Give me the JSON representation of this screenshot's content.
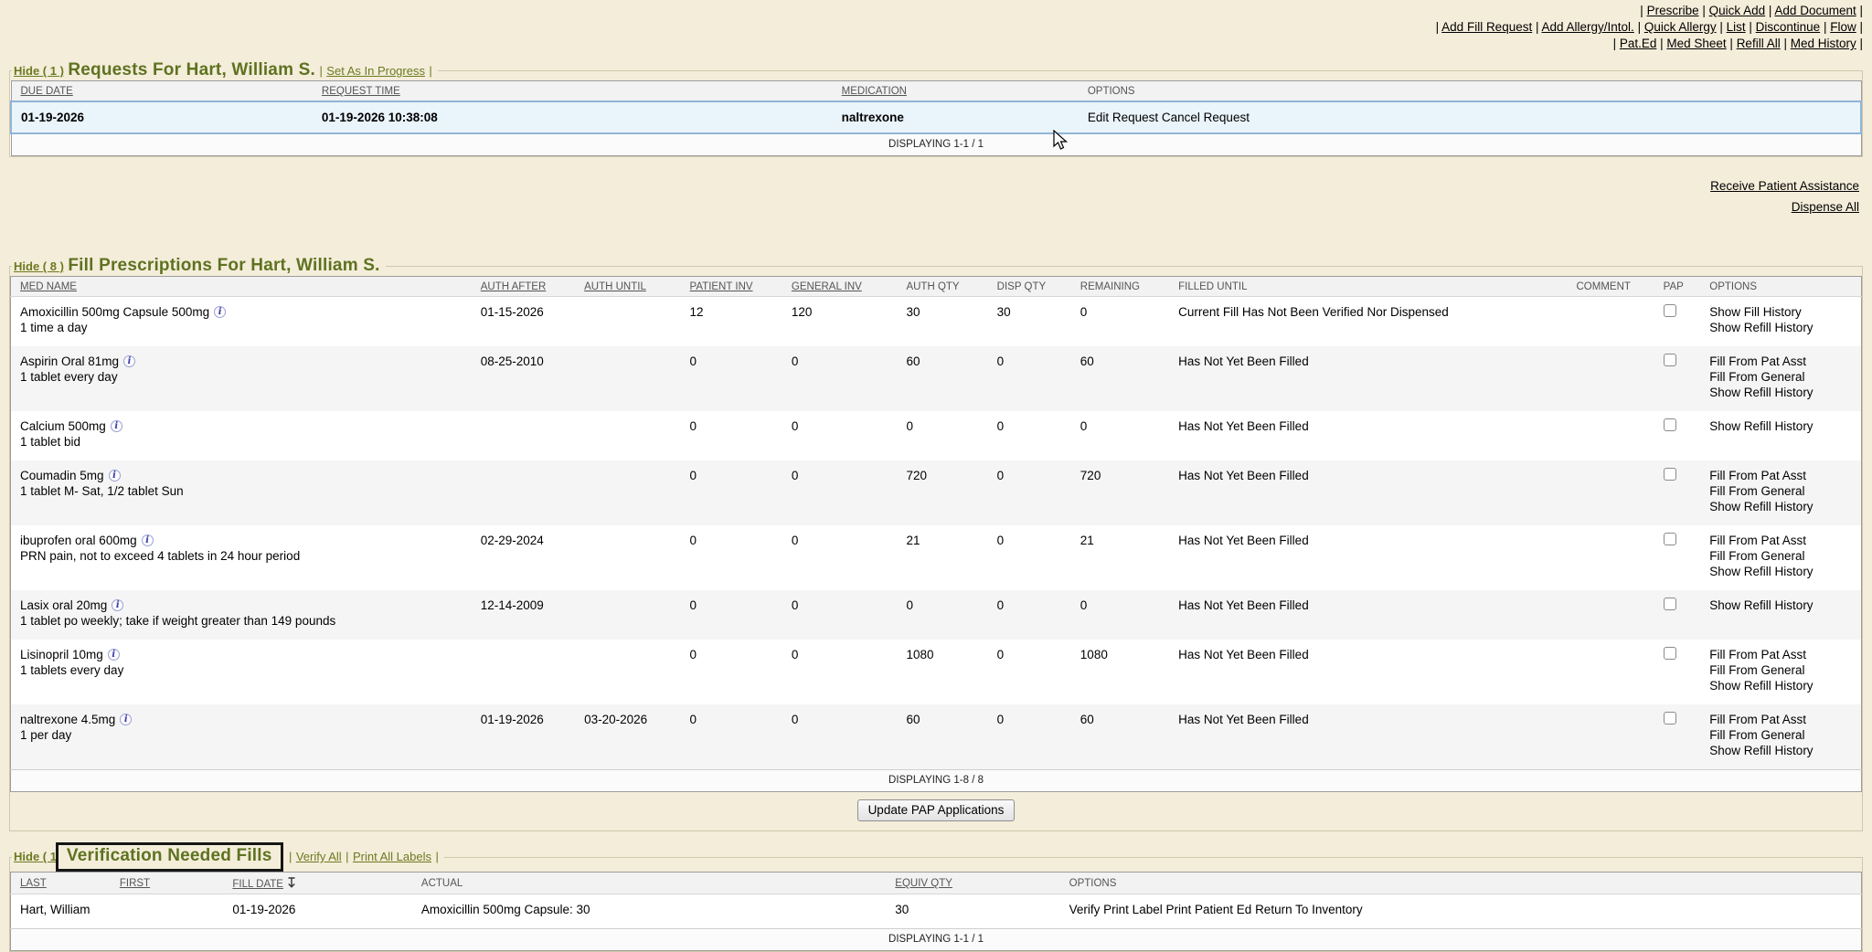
{
  "colors": {
    "background": "#f4edda",
    "accent_green": "#6b7b21",
    "selected_row": "#eaf4fb",
    "selected_border": "#8fb5d6"
  },
  "top_nav": {
    "rows": [
      [
        "Prescribe",
        "Quick Add",
        "Add Document"
      ],
      [
        "Add Fill Request",
        "Add Allergy/Intol.",
        "Quick Allergy",
        "List",
        "Discontinue",
        "Flow"
      ],
      [
        "Pat.Ed",
        "Med Sheet",
        "Refill All",
        "Med History"
      ]
    ]
  },
  "requests": {
    "hide_label": "Hide ( 1 )",
    "title": "Requests For Hart, William S.",
    "action": "Set As In Progress",
    "columns": [
      {
        "label": "DUE DATE",
        "underline": true
      },
      {
        "label": "REQUEST TIME",
        "underline": true
      },
      {
        "label": "MEDICATION",
        "underline": true
      },
      {
        "label": "OPTIONS",
        "underline": false
      }
    ],
    "row": {
      "due_date": "01-19-2026",
      "request_time": "01-19-2026 10:38:08",
      "medication": "naltrexone",
      "options": [
        "Edit Request",
        "Cancel Request"
      ]
    },
    "footer": "DISPLAYING 1-1 / 1"
  },
  "side_links": [
    "Receive Patient Assistance",
    "Dispense All"
  ],
  "fills": {
    "hide_label": "Hide ( 8 )",
    "title": "Fill Prescriptions For Hart, William S.",
    "columns": [
      {
        "label": "MED NAME",
        "underline": true
      },
      {
        "label": "AUTH AFTER",
        "underline": true
      },
      {
        "label": "AUTH UNTIL",
        "underline": true
      },
      {
        "label": "PATIENT INV",
        "underline": true
      },
      {
        "label": "GENERAL INV",
        "underline": true
      },
      {
        "label": "AUTH QTY",
        "underline": false
      },
      {
        "label": "DISP QTY",
        "underline": false
      },
      {
        "label": "REMAINING",
        "underline": false
      },
      {
        "label": "FILLED UNTIL",
        "underline": false
      },
      {
        "label": "COMMENT",
        "underline": false
      },
      {
        "label": "PAP",
        "underline": false
      },
      {
        "label": "OPTIONS",
        "underline": false
      }
    ],
    "rows": [
      {
        "med": "Amoxicillin 500mg Capsule 500mg",
        "sig": "1 time a day",
        "auth_after": "01-15-2026",
        "auth_until": "",
        "patient_inv": "12",
        "general_inv": "120",
        "auth_qty": "30",
        "disp_qty": "30",
        "remaining": "0",
        "filled_until": "Current Fill Has Not Been Verified Nor Dispensed",
        "comment": "",
        "options": [
          "Show Fill History",
          "Show Refill History"
        ]
      },
      {
        "med": "Aspirin Oral 81mg",
        "sig": "1 tablet every day",
        "auth_after": "08-25-2010",
        "auth_until": "",
        "patient_inv": "0",
        "general_inv": "0",
        "auth_qty": "60",
        "disp_qty": "0",
        "remaining": "60",
        "filled_until": "Has Not Yet Been Filled",
        "comment": "",
        "options": [
          "Fill From Pat Asst",
          "Fill From General",
          "Show Refill History"
        ]
      },
      {
        "med": "Calcium 500mg",
        "sig": "1 tablet bid",
        "auth_after": "",
        "auth_until": "",
        "patient_inv": "0",
        "general_inv": "0",
        "auth_qty": "0",
        "disp_qty": "0",
        "remaining": "0",
        "filled_until": "Has Not Yet Been Filled",
        "comment": "",
        "options": [
          "Show Refill History"
        ]
      },
      {
        "med": "Coumadin 5mg",
        "sig": "1 tablet M- Sat, 1/2 tablet Sun",
        "auth_after": "",
        "auth_until": "",
        "patient_inv": "0",
        "general_inv": "0",
        "auth_qty": "720",
        "disp_qty": "0",
        "remaining": "720",
        "filled_until": "Has Not Yet Been Filled",
        "comment": "",
        "options": [
          "Fill From Pat Asst",
          "Fill From General",
          "Show Refill History"
        ]
      },
      {
        "med": "ibuprofen oral 600mg",
        "sig": "PRN pain, not to exceed 4 tablets in 24 hour period",
        "auth_after": "02-29-2024",
        "auth_until": "",
        "patient_inv": "0",
        "general_inv": "0",
        "auth_qty": "21",
        "disp_qty": "0",
        "remaining": "21",
        "filled_until": "Has Not Yet Been Filled",
        "comment": "",
        "options": [
          "Fill From Pat Asst",
          "Fill From General",
          "Show Refill History"
        ]
      },
      {
        "med": "Lasix oral 20mg",
        "sig": "1 tablet po weekly; take if weight greater than 149 pounds",
        "auth_after": "12-14-2009",
        "auth_until": "",
        "patient_inv": "0",
        "general_inv": "0",
        "auth_qty": "0",
        "disp_qty": "0",
        "remaining": "0",
        "filled_until": "Has Not Yet Been Filled",
        "comment": "",
        "options": [
          "Show Refill History"
        ]
      },
      {
        "med": "Lisinopril 10mg",
        "sig": "1 tablets every day",
        "auth_after": "",
        "auth_until": "",
        "patient_inv": "0",
        "general_inv": "0",
        "auth_qty": "1080",
        "disp_qty": "0",
        "remaining": "1080",
        "filled_until": "Has Not Yet Been Filled",
        "comment": "",
        "options": [
          "Fill From Pat Asst",
          "Fill From General",
          "Show Refill History"
        ]
      },
      {
        "med": "naltrexone 4.5mg",
        "sig": "1 per day",
        "auth_after": "01-19-2026",
        "auth_until": "03-20-2026",
        "patient_inv": "0",
        "general_inv": "0",
        "auth_qty": "60",
        "disp_qty": "0",
        "remaining": "60",
        "filled_until": "Has Not Yet Been Filled",
        "comment": "",
        "options": [
          "Fill From Pat Asst",
          "Fill From General",
          "Show Refill History"
        ]
      }
    ],
    "footer": "DISPLAYING 1-8 / 8",
    "button_label": "Update PAP Applications"
  },
  "verification": {
    "hide_label": "Hide ( 1 )",
    "title": "Verification Needed Fills",
    "actions": [
      "Verify All",
      "Print All Labels"
    ],
    "columns": [
      {
        "label": "LAST",
        "underline": true
      },
      {
        "label": "FIRST",
        "underline": true
      },
      {
        "label": "FILL DATE",
        "underline": true,
        "sort": true
      },
      {
        "label": "ACTUAL",
        "underline": false
      },
      {
        "label": "EQUIV QTY",
        "underline": true
      },
      {
        "label": "OPTIONS",
        "underline": false
      }
    ],
    "row": {
      "last": "Hart, William",
      "first": "",
      "fill_date": "01-19-2026",
      "actual": "Amoxicillin 500mg Capsule: 30",
      "equiv_qty": "30",
      "options": [
        "Verify",
        "Print Label",
        "Print Patient Ed",
        "Return To Inventory"
      ]
    },
    "footer": "DISPLAYING 1-1 / 1"
  }
}
